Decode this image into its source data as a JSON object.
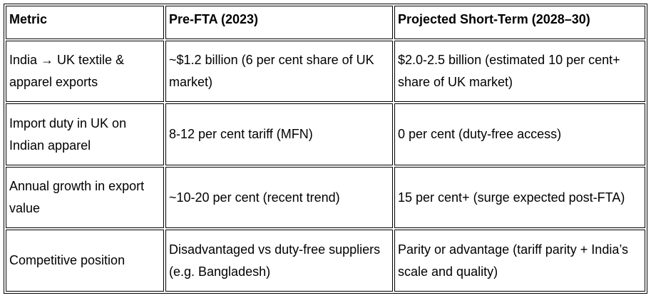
{
  "table": {
    "headers": [
      "Metric",
      "Pre-FTA (2023)",
      "Projected Short-Term (2028–30)"
    ],
    "rows": [
      [
        "India → UK textile & apparel exports",
        "~$1.2 billion (6 per cent share of UK market)",
        "$2.0-2.5 billion (estimated 10 per cent+ share of UK market)"
      ],
      [
        "Import duty in UK on Indian apparel",
        "8-12 per cent tariff (MFN)",
        "0 per cent (duty-free access)"
      ],
      [
        "Annual growth in export value",
        "~10-20 per cent (recent trend)",
        "15 per cent+ (surge expected post-FTA)"
      ],
      [
        "Competitive position",
        "Disadvantaged vs duty-free suppliers (e.g. Bangladesh)",
        "Parity or advantage (tariff parity + India’s scale and quality)"
      ]
    ]
  }
}
